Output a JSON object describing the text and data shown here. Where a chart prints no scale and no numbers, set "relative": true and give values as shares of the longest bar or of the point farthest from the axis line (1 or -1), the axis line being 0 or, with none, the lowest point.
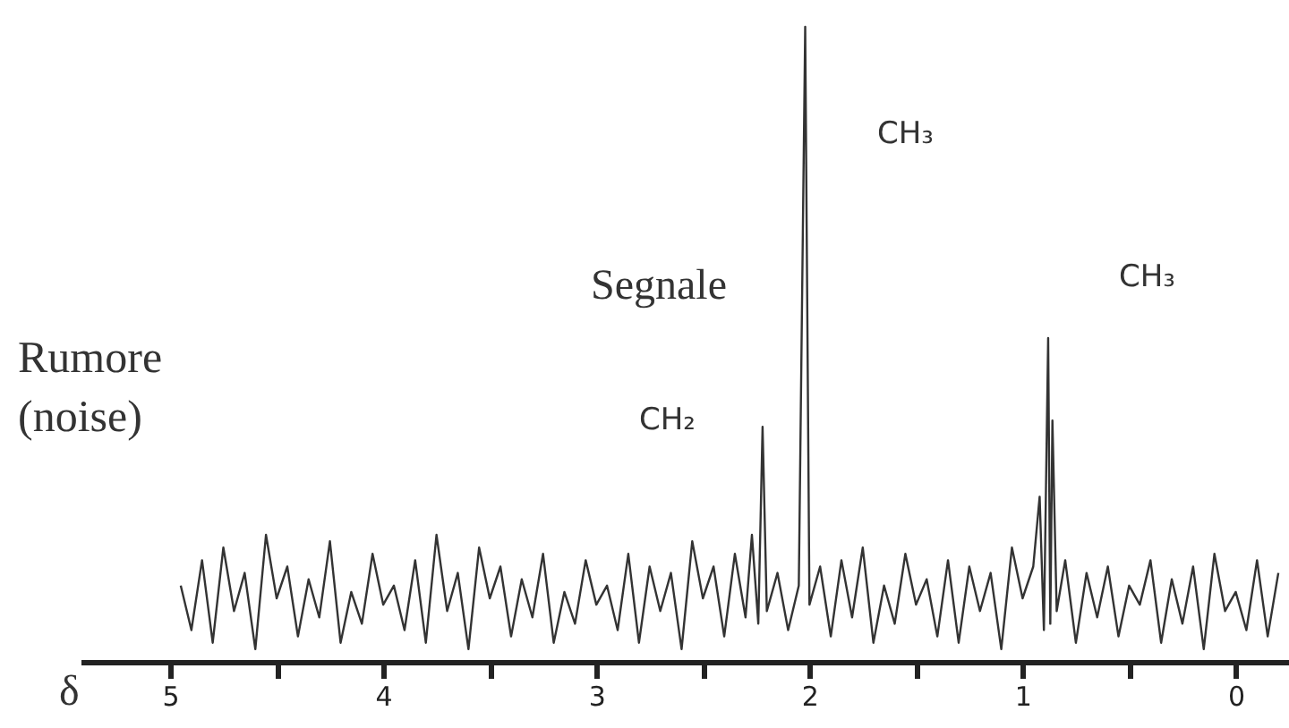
{
  "chart_data": {
    "type": "line",
    "relative": true,
    "xlabel": "δ",
    "xlim": [
      5.42,
      -0.25
    ],
    "xticks": [
      5,
      {
        "value": 4.5,
        "label": null
      },
      4,
      {
        "value": 3.5,
        "label": null
      },
      3,
      {
        "value": 2.5,
        "label": null
      },
      2,
      {
        "value": 1.5,
        "label": null
      },
      1,
      {
        "value": 0.5,
        "label": null
      },
      0
    ],
    "grid": false,
    "marker": "none",
    "line_style": "solid",
    "annotations": [
      "Segnale",
      "CH₃",
      "CH₃",
      "CH₂",
      "Rumore",
      "(noise)"
    ],
    "series": [
      {
        "color": "#333333",
        "x": [
          4.95,
          4.9,
          4.85,
          4.8,
          4.75,
          4.7,
          4.65,
          4.6,
          4.55,
          4.5,
          4.45,
          4.4,
          4.35,
          4.3,
          4.25,
          4.2,
          4.15,
          4.1,
          4.05,
          4.0,
          3.95,
          3.9,
          3.85,
          3.8,
          3.75,
          3.7,
          3.65,
          3.6,
          3.55,
          3.5,
          3.45,
          3.4,
          3.35,
          3.3,
          3.25,
          3.2,
          3.15,
          3.1,
          3.05,
          3.0,
          2.95,
          2.9,
          2.85,
          2.8,
          2.75,
          2.7,
          2.65,
          2.6,
          2.55,
          2.5,
          2.45,
          2.4,
          2.35,
          2.3,
          2.27,
          2.24,
          2.22,
          2.2,
          2.15,
          2.1,
          2.05,
          2.02,
          2.0,
          1.95,
          1.9,
          1.85,
          1.8,
          1.75,
          1.7,
          1.65,
          1.6,
          1.55,
          1.5,
          1.45,
          1.4,
          1.35,
          1.3,
          1.25,
          1.2,
          1.15,
          1.1,
          1.05,
          1.0,
          0.95,
          0.92,
          0.9,
          0.88,
          0.87,
          0.86,
          0.84,
          0.8,
          0.75,
          0.7,
          0.65,
          0.6,
          0.55,
          0.5,
          0.45,
          0.4,
          0.35,
          0.3,
          0.25,
          0.2,
          0.15,
          0.1,
          0.05,
          0,
          -0.05,
          -0.1,
          -0.15,
          -0.2
        ],
        "values": [
          0.12,
          0.05,
          0.16,
          0.03,
          0.18,
          0.08,
          0.14,
          0.02,
          0.2,
          0.1,
          0.15,
          0.04,
          0.13,
          0.07,
          0.19,
          0.03,
          0.11,
          0.06,
          0.17,
          0.09,
          0.12,
          0.05,
          0.16,
          0.03,
          0.2,
          0.08,
          0.14,
          0.02,
          0.18,
          0.1,
          0.15,
          0.04,
          0.13,
          0.07,
          0.17,
          0.03,
          0.11,
          0.06,
          0.16,
          0.09,
          0.12,
          0.05,
          0.17,
          0.03,
          0.15,
          0.08,
          0.14,
          0.02,
          0.19,
          0.1,
          0.15,
          0.04,
          0.17,
          0.07,
          0.2,
          0.06,
          0.37,
          0.08,
          0.14,
          0.05,
          0.12,
          1.0,
          0.09,
          0.15,
          0.04,
          0.16,
          0.07,
          0.18,
          0.03,
          0.12,
          0.06,
          0.17,
          0.09,
          0.13,
          0.04,
          0.16,
          0.03,
          0.15,
          0.08,
          0.14,
          0.02,
          0.18,
          0.1,
          0.15,
          0.26,
          0.05,
          0.51,
          0.06,
          0.38,
          0.08,
          0.16,
          0.03,
          0.14,
          0.07,
          0.15,
          0.04,
          0.12,
          0.09,
          0.16,
          0.03,
          0.13,
          0.06,
          0.15,
          0.02,
          0.17,
          0.08,
          0.11,
          0.05,
          0.16,
          0.04,
          0.14
        ]
      }
    ]
  }
}
